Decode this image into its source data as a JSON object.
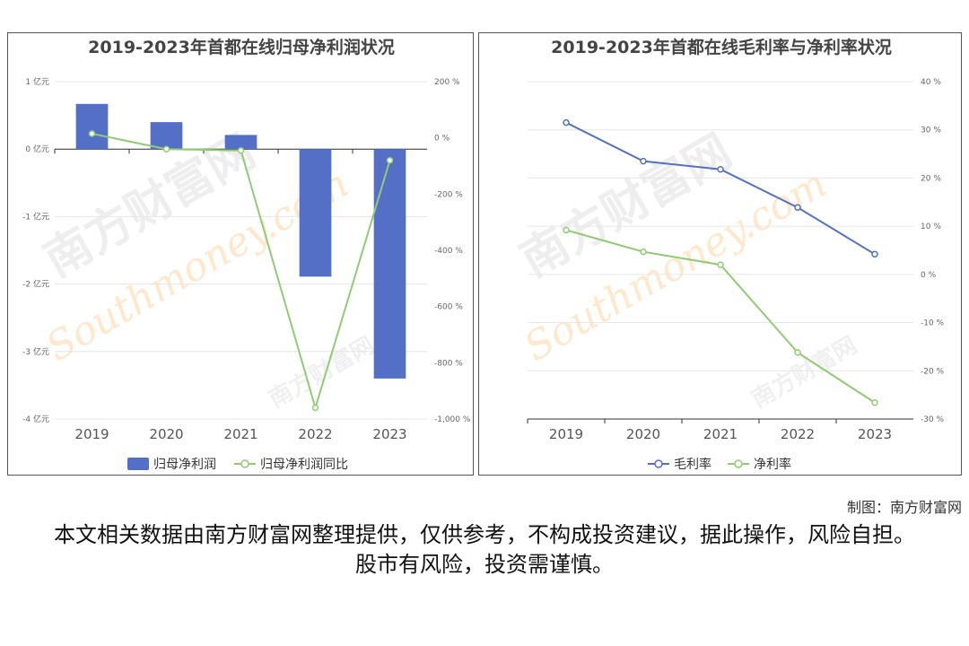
{
  "colors": {
    "bar": "#5470c6",
    "line_green": "#91cc75",
    "line_blue": "#5470c6",
    "grid": "#e6e6e6",
    "watermark": "#ffe8cc"
  },
  "watermark": {
    "site_cn": "南方财富网",
    "site_en": "Southmoney.com"
  },
  "charts": [
    {
      "title": "2019-2023年首都在线归母净利润状况",
      "type": "bar+line",
      "legend_position": "bottom-center",
      "categories": [
        "2019",
        "2020",
        "2021",
        "2022",
        "2023"
      ],
      "left_axis": {
        "range": [
          -4,
          1
        ],
        "ticks": [
          1,
          0,
          -1,
          -2,
          -3,
          -4
        ],
        "tick_labels": [
          "1 亿元",
          "0 亿元",
          "-1 亿元",
          "-2 亿元",
          "-3 亿元",
          "-4 亿元"
        ]
      },
      "right_axis": {
        "range": [
          -1000,
          200
        ],
        "ticks": [
          200,
          0,
          -200,
          -400,
          -600,
          -800,
          -1000
        ],
        "tick_labels": [
          "200 %",
          "0 %",
          "-200 %",
          "-400 %",
          "-600 %",
          "-800 %",
          "-1,000 %"
        ]
      },
      "series": [
        {
          "name": "归母净利润",
          "kind": "bar",
          "axis": "left",
          "values": [
            0.67,
            0.4,
            0.21,
            -1.89,
            -3.4
          ]
        },
        {
          "name": "归母净利润同比",
          "kind": "line",
          "axis": "right",
          "values": [
            15,
            -40,
            -45,
            -960,
            -80
          ]
        }
      ]
    },
    {
      "title": "2019-2023年首都在线毛利率与净利率状况",
      "type": "line",
      "legend_position": "bottom-center",
      "categories": [
        "2019",
        "2020",
        "2021",
        "2022",
        "2023"
      ],
      "right_axis": {
        "range": [
          -30,
          40
        ],
        "ticks": [
          40,
          30,
          20,
          10,
          0,
          -10,
          -20,
          -30
        ],
        "tick_labels": [
          "40 %",
          "30 %",
          "20 %",
          "10 %",
          "0 %",
          "-10 %",
          "-20 %",
          "-30 %"
        ]
      },
      "series": [
        {
          "name": "毛利率",
          "kind": "line",
          "color": "#5470c6",
          "values": [
            31.5,
            23.5,
            21.8,
            13.9,
            4.2
          ]
        },
        {
          "name": "净利率",
          "kind": "line",
          "color": "#91cc75",
          "values": [
            9.2,
            4.7,
            2.0,
            -16.2,
            -26.6
          ]
        }
      ]
    }
  ],
  "footer": {
    "credit": "制图：南方财富网",
    "disclaimer": "本文相关数据由南方财富网整理提供，仅供参考，不构成投资建议，据此操作，风险自担。股市有风险，投资需谨慎。"
  }
}
